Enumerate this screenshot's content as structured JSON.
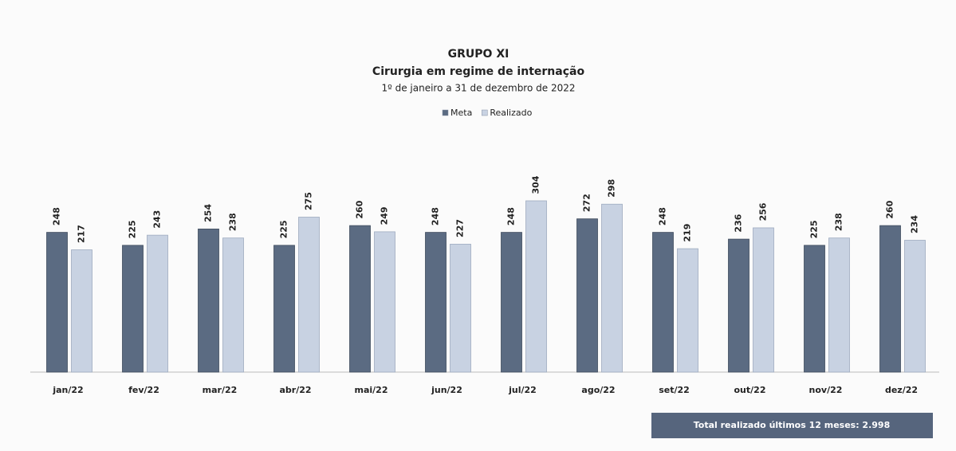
{
  "chart_data": {
    "type": "bar",
    "title": "GRUPO XI",
    "subtitle": "Cirurgia em regime de internação",
    "period": "1º de janeiro a 31 de dezembro de 2022",
    "categories": [
      "jan/22",
      "fev/22",
      "mar/22",
      "abr/22",
      "mai/22",
      "jun/22",
      "jul/22",
      "ago/22",
      "set/22",
      "out/22",
      "nov/22",
      "dez/22"
    ],
    "series": [
      {
        "name": "Meta",
        "color": "#5b6b82",
        "values": [
          248,
          225,
          254,
          225,
          260,
          248,
          248,
          272,
          248,
          236,
          225,
          260
        ]
      },
      {
        "name": "Realizado",
        "color": "#c8d2e2",
        "values": [
          217,
          243,
          238,
          275,
          249,
          227,
          304,
          298,
          219,
          256,
          238,
          234
        ]
      }
    ],
    "legend": "top",
    "annotation": "Total realizado últimos 12 meses: 2.998"
  }
}
